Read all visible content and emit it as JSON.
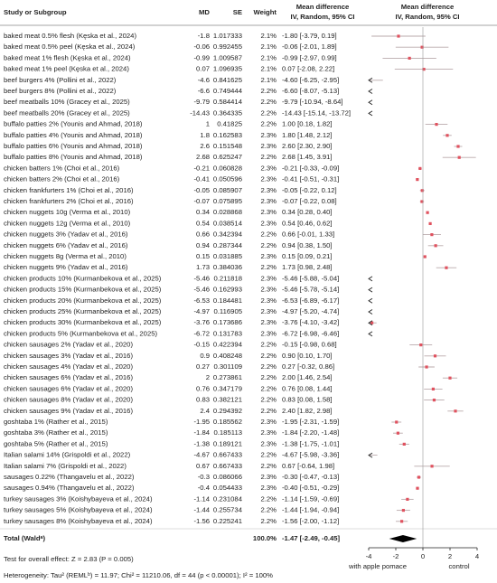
{
  "chart_data": {
    "type": "forest",
    "headers": {
      "study": "Study or Subgroup",
      "md": "MD",
      "se": "SE",
      "weight": "Weight",
      "ci": [
        "Mean difference",
        "IV, Random, 95% CI"
      ],
      "plot": [
        "Mean difference",
        "IV, Random, 95% CI"
      ]
    },
    "categories": [
      "baked meat 0.5% flesh (Kęska et al., 2024)",
      "baked meat 0.5% peel (Kęska et al., 2024)",
      "baked meat 1% flesh (Kęska et al., 2024)",
      "baked meat 1% peel (Kęska et al., 2024)",
      "beef burgers 4% (Pollini et al., 2022)",
      "beef burgers 8% (Pollini et al., 2022)",
      "beef meatballs 10% (Gracey et al., 2025)",
      "beef meatballs 20% (Gracey et al., 2025)",
      "buffalo patties 2% (Younis and Ahmad, 2018)",
      "buffalo patties 4% (Younis and Ahmad, 2018)",
      "buffalo patties 6% (Younis and Ahmad, 2018)",
      "buffalo patties 8% (Younis and Ahmad, 2018)",
      "chicken batters 1% (Choi et al., 2016)",
      "chicken batters 2% (Choi et al., 2016)",
      "chicken frankfurters 1% (Choi et al., 2016)",
      "chicken frankfurters 2% (Choi et al., 2016)",
      "chicken nuggets 10g (Verma et al., 2010)",
      "chicken nuggets 12g (Verma et al., 2010)",
      "chicken nuggets 3% (Yadav et al., 2016)",
      "chicken nuggets 6% (Yadav et al., 2016)",
      "chicken nuggets 8g (Verma et al., 2010)",
      "chicken nuggets 9% (Yadav et al., 2016)",
      "chicken products 10% (Kurmanbekova et al., 2025)",
      "chicken products 15% (Kurmanbekova et al., 2025)",
      "chicken products 20% (Kurmanbekova et al., 2025)",
      "chicken products 25% (Kurmanbekova et al., 2025)",
      "chicken products 30% (Kurmanbekova et al., 2025)",
      "chicken products 5% (Kurmanbekova et al., 2025)",
      "chicken sausages 2% (Yadav et al., 2020)",
      "chicken sausages 3% (Yadav et al., 2016)",
      "chicken sausages 4% (Yadav et al., 2020)",
      "chicken sausages 6% (Yadav et al., 2016)",
      "chicken sausages 6% (Yadav et al., 2020)",
      "chicken sausages 8% (Yadav et al., 2020)",
      "chicken sausages 9% (Yadav et al., 2016)",
      "goshtaba 1% (Rather et al., 2015)",
      "goshtaba 3% (Rather et al., 2015)",
      "goshtaba 5% (Rather et al., 2015)",
      "Italian salami 14% (Grispoldi et al., 2022)",
      "Italian salami 7% (Grispoldi et al., 2022)",
      "sausages 0.22% (Thangavelu et al., 2022)",
      "sausages 0.94% (Thangavelu et al., 2022)",
      "turkey sausages 3% (Koishybayeva et al., 2024)",
      "turkey sausages 5% (Koishybayeva et al., 2024)",
      "turkey sausages 8% (Koishybayeva et al., 2024)"
    ],
    "values": [
      -1.8,
      -0.06,
      -0.99,
      0.07,
      -4.6,
      -6.6,
      -9.79,
      -14.43,
      1,
      1.8,
      2.6,
      2.68,
      -0.21,
      -0.41,
      -0.05,
      -0.07,
      0.34,
      0.54,
      0.66,
      0.94,
      0.15,
      1.73,
      -5.46,
      -5.46,
      -6.53,
      -4.97,
      -3.76,
      -6.72,
      -0.15,
      0.9,
      0.27,
      2,
      0.76,
      0.83,
      2.4,
      -1.95,
      -1.84,
      -1.38,
      -4.67,
      0.67,
      -0.3,
      -0.4,
      -1.14,
      -1.44,
      -1.56
    ],
    "se": [
      1.017333,
      0.992455,
      1.009587,
      1.096935,
      0.841625,
      0.749444,
      0.584414,
      0.364335,
      0.41825,
      0.162583,
      0.151548,
      0.625247,
      0.060828,
      0.050596,
      0.085907,
      0.075895,
      0.028868,
      0.038514,
      0.342394,
      0.287344,
      0.031885,
      0.384036,
      0.211818,
      0.162993,
      0.184481,
      0.116905,
      0.173686,
      0.131783,
      0.422394,
      0.408248,
      0.301109,
      0.273861,
      0.347179,
      0.382121,
      0.294392,
      0.185562,
      0.185113,
      0.189121,
      0.667433,
      0.667433,
      0.086066,
      0.054433,
      0.231084,
      0.255734,
      0.225241
    ],
    "weights": [
      "2.1%",
      "2.1%",
      "2.1%",
      "2.1%",
      "2.1%",
      "2.2%",
      "2.2%",
      "2.2%",
      "2.2%",
      "2.3%",
      "2.3%",
      "2.2%",
      "2.3%",
      "2.3%",
      "2.3%",
      "2.3%",
      "2.3%",
      "2.3%",
      "2.2%",
      "2.2%",
      "2.3%",
      "2.2%",
      "2.3%",
      "2.3%",
      "2.3%",
      "2.3%",
      "2.3%",
      "2.3%",
      "2.2%",
      "2.2%",
      "2.2%",
      "2.2%",
      "2.2%",
      "2.2%",
      "2.2%",
      "2.3%",
      "2.3%",
      "2.3%",
      "2.2%",
      "2.2%",
      "2.3%",
      "2.3%",
      "2.2%",
      "2.2%",
      "2.2%"
    ],
    "ci_low": [
      -3.79,
      -2.01,
      -2.97,
      -2.08,
      -6.25,
      -8.07,
      -10.94,
      -15.14,
      0.18,
      1.48,
      2.3,
      1.45,
      -0.33,
      -0.51,
      -0.22,
      -0.22,
      0.28,
      0.46,
      -0.01,
      0.38,
      0.09,
      0.98,
      -5.88,
      -5.78,
      -6.89,
      -5.2,
      -4.1,
      -6.98,
      -0.98,
      0.1,
      -0.32,
      1.46,
      0.08,
      0.08,
      1.82,
      -2.31,
      -2.2,
      -1.75,
      -5.98,
      -0.64,
      -0.47,
      -0.51,
      -1.59,
      -1.94,
      -2.0
    ],
    "ci_high": [
      0.19,
      1.89,
      0.99,
      2.22,
      -2.95,
      -5.13,
      -8.64,
      -13.72,
      1.82,
      2.12,
      2.9,
      3.91,
      -0.09,
      -0.31,
      0.12,
      0.08,
      0.4,
      0.62,
      1.33,
      1.5,
      0.21,
      2.48,
      -5.04,
      -5.14,
      -6.17,
      -4.74,
      -3.42,
      -6.46,
      0.68,
      1.7,
      0.86,
      2.54,
      1.44,
      1.58,
      2.98,
      -1.59,
      -1.48,
      -1.01,
      -3.36,
      1.98,
      -0.13,
      -0.29,
      -0.69,
      -0.94,
      -1.12
    ],
    "ci_labels": [
      "-1.80 [-3.79, 0.19]",
      "-0.06 [-2.01, 1.89]",
      "-0.99 [-2.97, 0.99]",
      "0.07 [-2.08, 2.22]",
      "-4.60 [-6.25, -2.95]",
      "-6.60 [-8.07, -5.13]",
      "-9.79 [-10.94, -8.64]",
      "-14.43 [-15.14, -13.72]",
      "1.00 [0.18, 1.82]",
      "1.80 [1.48, 2.12]",
      "2.60 [2.30, 2.90]",
      "2.68 [1.45, 3.91]",
      "-0.21 [-0.33, -0.09]",
      "-0.41 [-0.51, -0.31]",
      "-0.05 [-0.22, 0.12]",
      "-0.07 [-0.22, 0.08]",
      "0.34 [0.28, 0.40]",
      "0.54 [0.46, 0.62]",
      "0.66 [-0.01, 1.33]",
      "0.94 [0.38, 1.50]",
      "0.15 [0.09, 0.21]",
      "1.73 [0.98, 2.48]",
      "-5.46 [-5.88, -5.04]",
      "-5.46 [-5.78, -5.14]",
      "-6.53 [-6.89, -6.17]",
      "-4.97 [-5.20, -4.74]",
      "-3.76 [-4.10, -3.42]",
      "-6.72 [-6.98, -6.46]",
      "-0.15 [-0.98, 0.68]",
      "0.90 [0.10, 1.70]",
      "0.27 [-0.32, 0.86]",
      "2.00 [1.46, 2.54]",
      "0.76 [0.08, 1.44]",
      "0.83 [0.08, 1.58]",
      "2.40 [1.82, 2.98]",
      "-1.95 [-2.31, -1.59]",
      "-1.84 [-2.20, -1.48]",
      "-1.38 [-1.75, -1.01]",
      "-4.67 [-5.98, -3.36]",
      "0.67 [-0.64, 1.98]",
      "-0.30 [-0.47, -0.13]",
      "-0.40 [-0.51, -0.29]",
      "-1.14 [-1.59, -0.69]",
      "-1.44 [-1.94, -0.94]",
      "-1.56 [-2.00, -1.12]"
    ],
    "total": {
      "label": "Total (Waldᵃ)",
      "weight": "100.0%",
      "value": -1.47,
      "ci_low": -2.49,
      "ci_high": -0.45,
      "ci_label": "-1.47 [-2.49, -0.45]"
    },
    "overall_effect": "Test for overall effect: Z = 2.83 (P = 0.005)",
    "heterogeneity": "Heterogeneity: Tau² (REMLᵇ) = 11.97; Chi² = 11210.06, df = 44 (p < 0.00001); I² = 100%",
    "xlim": [
      -4,
      4
    ],
    "xticks": [
      -4,
      -2,
      0,
      2,
      4
    ],
    "xlabels": [
      "with apple pomace",
      "control"
    ],
    "color": "#e0525f",
    "ci_color": "#b9a9ab",
    "total_color": "#000000"
  }
}
